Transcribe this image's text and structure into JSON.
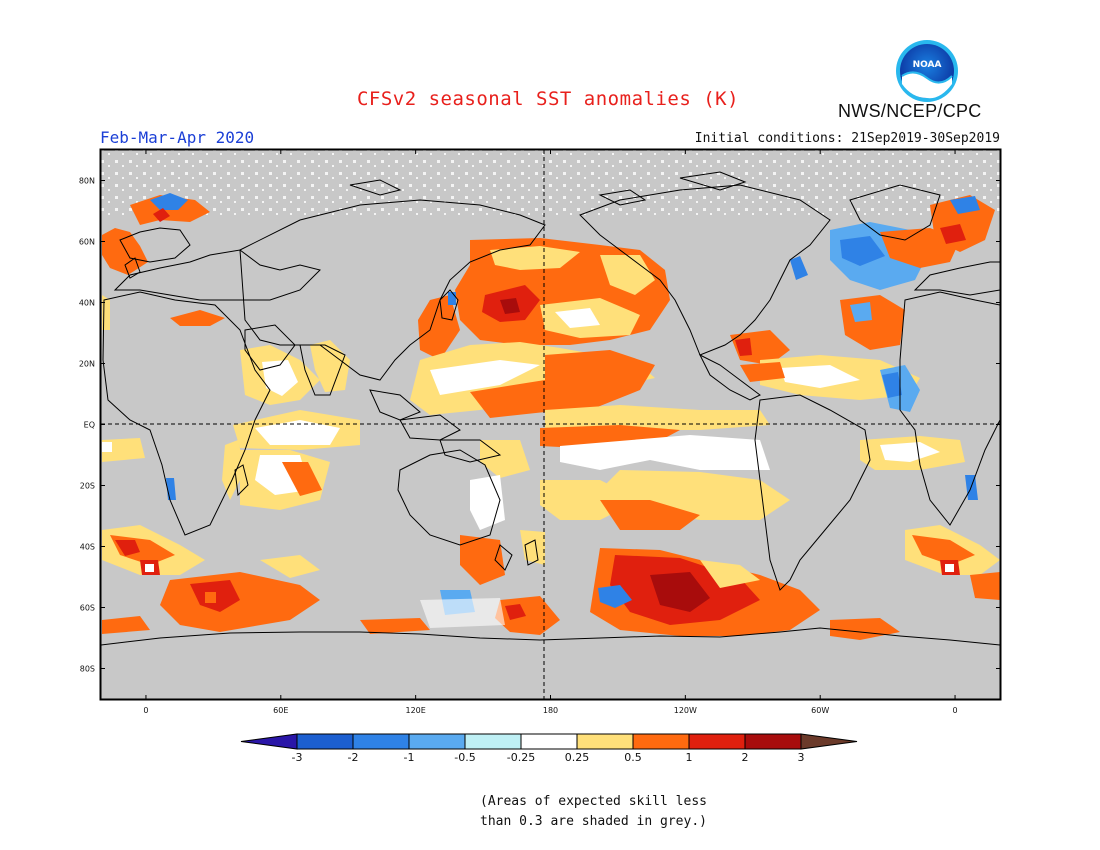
{
  "title": "CFSv2 seasonal SST anomalies (K)",
  "agency": "NWS/NCEP/CPC",
  "logo_text": "NOAA",
  "season": "Feb-Mar-Apr 2020",
  "initial_conditions": "Initial conditions: 21Sep2019-30Sep2019",
  "map": {
    "projection": "cylindrical-equidistant",
    "lon_range": [
      -20,
      380
    ],
    "lat_range": [
      -90,
      90
    ],
    "grid": "dashed lines at Equator and 180",
    "land_color": "#c8c8c8",
    "low_skill_color": "#c8c8c8",
    "lat_labels": [
      "80N",
      "60N",
      "40N",
      "20N",
      "EQ",
      "20S",
      "40S",
      "60S",
      "80S"
    ],
    "lat_values": [
      80,
      60,
      40,
      20,
      0,
      -20,
      -40,
      -60,
      -80
    ],
    "lon_labels": [
      "0",
      "60E",
      "120E",
      "180",
      "120W",
      "60W",
      "0"
    ],
    "lon_values": [
      0,
      60,
      120,
      180,
      240,
      300,
      360
    ]
  },
  "colorbar": {
    "labels": [
      "-3",
      "-2",
      "-1",
      "-0.5",
      "-0.25",
      "0.25",
      "0.5",
      "1",
      "2",
      "3"
    ],
    "colors": [
      "#2a16a8",
      "#1c5fd0",
      "#2f82e6",
      "#5aaaf0",
      "#bff0f5",
      "#ffffff",
      "#ffe07a",
      "#ff6a10",
      "#e0200e",
      "#a80c0c",
      "#6b3a2a"
    ]
  },
  "note_lines": [
    "(Areas of expected skill less",
    "than 0.3 are shaded in grey.)"
  ]
}
